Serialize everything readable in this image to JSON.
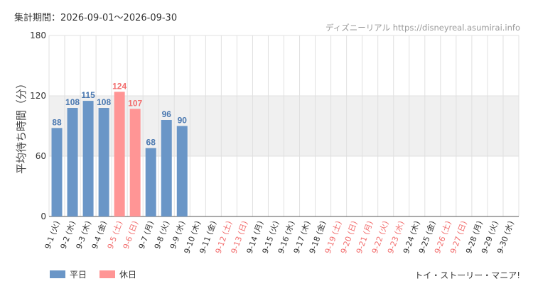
{
  "header": {
    "period_label": "集計期間：2026-09-01～2026-09-30",
    "credit": "ディズニーリアル https://disneyreal.asumirai.info"
  },
  "legend": {
    "weekday_label": "平日",
    "holiday_label": "休日"
  },
  "footer": {
    "attraction_name": "トイ・ストーリー・マニア!"
  },
  "colors": {
    "weekday": "#6a96c7",
    "holiday": "#ff9595",
    "weekday_text": "#4a78b0",
    "holiday_text": "#f26e6e",
    "band": "#f0f0f0",
    "grid": "#e0e0e0"
  },
  "chart_data": {
    "type": "bar",
    "ylabel": "平均待ち時間（分）",
    "ylim": [
      0,
      180
    ],
    "yticks": [
      0,
      60,
      120,
      180
    ],
    "highlight_band": [
      60,
      120
    ],
    "grid": true,
    "legend_position": "bottom-left",
    "categories": [
      "9-1 (火)",
      "9-2 (水)",
      "9-3 (木)",
      "9-4 (金)",
      "9-5 (土)",
      "9-6 (日)",
      "9-7 (月)",
      "9-8 (火)",
      "9-9 (水)",
      "9-10 (木)",
      "9-11 (金)",
      "9-12 (土)",
      "9-13 (日)",
      "9-14 (月)",
      "9-15 (火)",
      "9-16 (水)",
      "9-17 (木)",
      "9-18 (金)",
      "9-19 (土)",
      "9-20 (日)",
      "9-21 (月)",
      "9-22 (火)",
      "9-23 (水)",
      "9-24 (木)",
      "9-25 (金)",
      "9-26 (土)",
      "9-27 (日)",
      "9-28 (月)",
      "9-29 (火)",
      "9-30 (水)"
    ],
    "values": [
      88,
      108,
      115,
      108,
      124,
      107,
      68,
      96,
      90,
      null,
      null,
      null,
      null,
      null,
      null,
      null,
      null,
      null,
      null,
      null,
      null,
      null,
      null,
      null,
      null,
      null,
      null,
      null,
      null,
      null
    ],
    "day_type": [
      "平日",
      "平日",
      "平日",
      "平日",
      "休日",
      "休日",
      "平日",
      "平日",
      "平日",
      "平日",
      "平日",
      "休日",
      "休日",
      "平日",
      "平日",
      "平日",
      "平日",
      "平日",
      "休日",
      "休日",
      "休日",
      "休日",
      "休日",
      "平日",
      "平日",
      "休日",
      "休日",
      "平日",
      "平日",
      "平日"
    ]
  }
}
